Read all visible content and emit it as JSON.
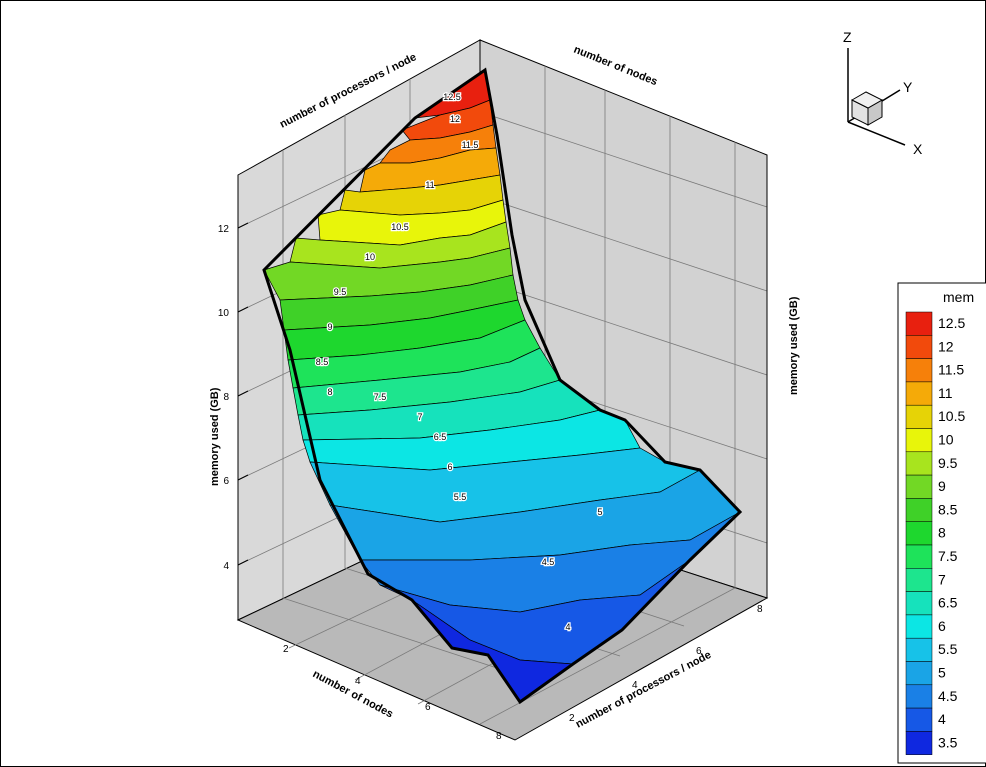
{
  "chart_data": {
    "type": "surface3d",
    "x_axis": {
      "label": "number of nodes",
      "ticks": [
        2,
        4,
        6,
        8
      ]
    },
    "y_axis": {
      "label": "number of processors / node",
      "ticks": [
        2,
        4,
        6,
        8
      ]
    },
    "z_axis": {
      "label": "memory used (GB)",
      "ticks": [
        4,
        6,
        8,
        10,
        12
      ]
    },
    "legend": {
      "title": "mem",
      "levels": [
        {
          "value": "12.5",
          "color": "#e8200f"
        },
        {
          "value": "12",
          "color": "#f24a0c"
        },
        {
          "value": "11.5",
          "color": "#f6800a"
        },
        {
          "value": "11",
          "color": "#f5aa08"
        },
        {
          "value": "10.5",
          "color": "#e6d306"
        },
        {
          "value": "10",
          "color": "#e8f50a"
        },
        {
          "value": "9.5",
          "color": "#a8e41e"
        },
        {
          "value": "9",
          "color": "#72d825"
        },
        {
          "value": "8.5",
          "color": "#3fd128"
        },
        {
          "value": "8",
          "color": "#1ed72e"
        },
        {
          "value": "7.5",
          "color": "#1ee35a"
        },
        {
          "value": "7",
          "color": "#1de58e"
        },
        {
          "value": "6.5",
          "color": "#16e2bc"
        },
        {
          "value": "6",
          "color": "#0ce6e4"
        },
        {
          "value": "5.5",
          "color": "#17c2e8"
        },
        {
          "value": "5",
          "color": "#1aa4e6"
        },
        {
          "value": "4.5",
          "color": "#1a80e6"
        },
        {
          "value": "4",
          "color": "#1658e6"
        },
        {
          "value": "3.5",
          "color": "#0f28e0"
        }
      ]
    },
    "contour_labels": [
      "12.5",
      "12",
      "11.5",
      "11",
      "10.5",
      "10",
      "9.5",
      "9",
      "8.5",
      "8",
      "7.5",
      "7",
      "6.5",
      "6",
      "5.5",
      "5",
      "4.5",
      "4"
    ]
  },
  "axis_triad": {
    "x": "X",
    "y": "Y",
    "z": "Z"
  }
}
